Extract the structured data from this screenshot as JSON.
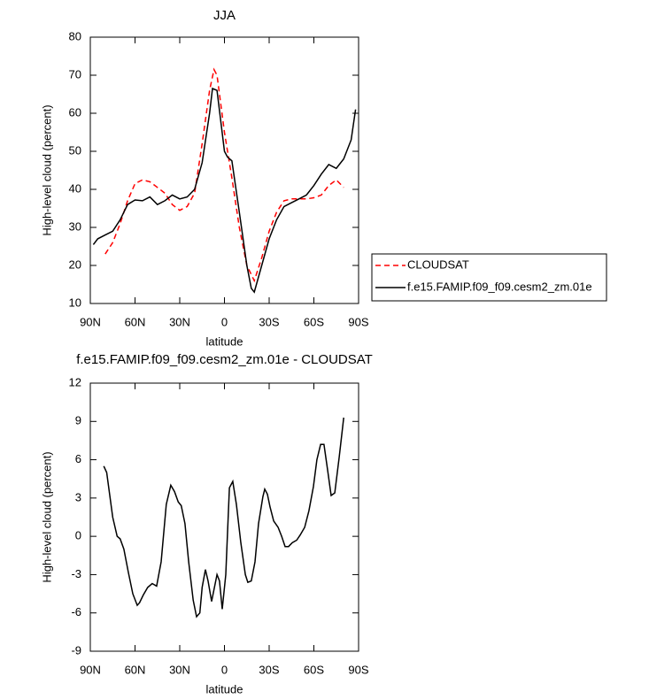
{
  "chart_data": [
    {
      "type": "line",
      "title": "JJA",
      "xlabel": "latitude",
      "ylabel": "High-level cloud (percent)",
      "xlim": [
        90,
        -90
      ],
      "ylim": [
        10,
        80
      ],
      "xticks": [
        {
          "value": 90,
          "label": "90N"
        },
        {
          "value": 60,
          "label": "60N"
        },
        {
          "value": 30,
          "label": "30N"
        },
        0,
        {
          "value": -30,
          "label": "30S"
        },
        {
          "value": -60,
          "label": "60S"
        },
        {
          "value": -90,
          "label": "90S"
        }
      ],
      "yticks": [
        10,
        20,
        30,
        40,
        50,
        60,
        70,
        80
      ],
      "legend": "right",
      "series": [
        {
          "name": "CLOUDSAT",
          "color": "#ff0000",
          "dashed": true,
          "x": [
            80,
            75,
            70,
            65,
            60,
            55,
            50,
            45,
            40,
            35,
            30,
            25,
            20,
            15,
            10,
            7,
            5,
            0,
            -5,
            -10,
            -15,
            -20,
            -25,
            -30,
            -35,
            -40,
            -45,
            -50,
            -55,
            -60,
            -65,
            -70,
            -75,
            -80
          ],
          "values": [
            23,
            26,
            31,
            37,
            41.5,
            42.5,
            42,
            40.5,
            39,
            36,
            34.5,
            35.5,
            39,
            52,
            66,
            71.5,
            70,
            55,
            43,
            30,
            20,
            16,
            22,
            29,
            34,
            37,
            37.5,
            37.5,
            37.5,
            37.8,
            38.5,
            41,
            42.5,
            40.5
          ]
        },
        {
          "name": "f.e15.FAMIP.f09_f09.cesm2_zm.01e",
          "color": "#000000",
          "dashed": false,
          "x": [
            88,
            85,
            80,
            75,
            70,
            65,
            60,
            55,
            50,
            45,
            40,
            35,
            30,
            25,
            20,
            15,
            10,
            8,
            5,
            0,
            -2,
            -5,
            -10,
            -15,
            -18,
            -20,
            -25,
            -30,
            -35,
            -40,
            -45,
            -50,
            -55,
            -60,
            -65,
            -70,
            -75,
            -80,
            -85,
            -88
          ],
          "values": [
            25.5,
            27,
            28,
            29,
            32,
            36,
            37.2,
            37,
            38,
            36,
            37,
            38.5,
            37.5,
            38,
            40,
            47,
            60,
            66.5,
            66,
            50,
            48.5,
            47.5,
            34,
            20,
            14,
            13,
            20,
            27,
            32,
            35.5,
            36.5,
            37.5,
            38.5,
            41,
            44,
            46.5,
            45.5,
            48,
            53,
            61
          ]
        }
      ]
    },
    {
      "type": "line",
      "title": "f.e15.FAMIP.f09_f09.cesm2_zm.01e - CLOUDSAT",
      "xlabel": "latitude",
      "ylabel": "High-level cloud (percent)",
      "xlim": [
        90,
        -90
      ],
      "ylim": [
        -9,
        12
      ],
      "xticks": [
        {
          "value": 90,
          "label": "90N"
        },
        {
          "value": 60,
          "label": "60N"
        },
        {
          "value": 30,
          "label": "30N"
        },
        0,
        {
          "value": -30,
          "label": "30S"
        },
        {
          "value": -60,
          "label": "60S"
        },
        {
          "value": -90,
          "label": "90S"
        }
      ],
      "yticks": [
        -9,
        -6,
        -3,
        0,
        3,
        6,
        9,
        12
      ],
      "series": [
        {
          "color": "#000000",
          "dashed": false,
          "x": [
            81,
            79,
            75,
            72,
            70,
            67.5,
            64.5,
            61.5,
            58.5,
            57,
            54.5,
            51.5,
            48.5,
            45.5,
            42.5,
            39,
            36,
            33.5,
            31,
            29,
            26.5,
            24,
            21,
            18.7,
            16.5,
            15,
            12.8,
            11,
            8.6,
            5,
            3.3,
            1.5,
            -0.9,
            -3.3,
            -5.6,
            -8,
            -11,
            -14,
            -15.7,
            -18,
            -20.5,
            -22.9,
            -25.8,
            -27,
            -28.8,
            -30.6,
            -33,
            -36,
            -38.4,
            -40.7,
            -43,
            -45.5,
            -48.5,
            -50.8,
            -53.8,
            -56.7,
            -59.7,
            -62,
            -64.5,
            -66.8,
            -69.2,
            -71.6,
            -74,
            -77,
            -80
          ],
          "values": [
            5.5,
            5.0,
            1.5,
            0,
            -0.2,
            -1,
            -2.8,
            -4.5,
            -5.4,
            -5.2,
            -4.6,
            -4.0,
            -3.7,
            -3.9,
            -2,
            2.5,
            4.0,
            3.5,
            2.7,
            2.4,
            1,
            -2,
            -5,
            -6.3,
            -6,
            -4,
            -2.6,
            -3.5,
            -5.1,
            -3.0,
            -3.5,
            -5.7,
            -3,
            3.8,
            4.3,
            2.5,
            -0.5,
            -3.0,
            -3.6,
            -3.5,
            -2,
            1,
            3.1,
            3.7,
            3.3,
            2.3,
            1.2,
            0.7,
            0,
            -0.8,
            -0.8,
            -0.5,
            -0.3,
            0.1,
            0.7,
            2,
            3.9,
            6,
            7.2,
            7.2,
            5.2,
            3.2,
            3.4,
            6.2,
            9.3
          ]
        }
      ]
    }
  ]
}
